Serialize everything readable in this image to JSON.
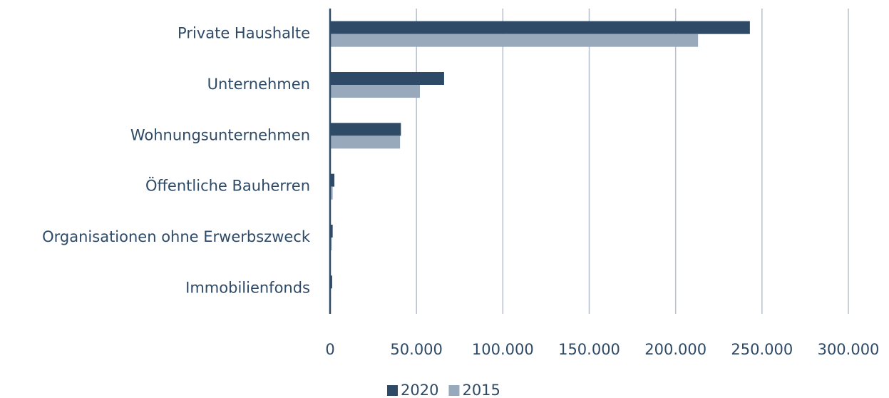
{
  "chart_data": {
    "type": "hbar",
    "categories": [
      "Private Haushalte",
      "Unternehmen",
      "Wohnungsunternehmen",
      "Öffentliche Bauherren",
      "Organisationen ohne Erwerbszweck",
      "Immobilienfonds"
    ],
    "series": [
      {
        "name": "2020",
        "color": "#2e4a66",
        "values": [
          243000,
          66000,
          41000,
          2500,
          1500,
          1200
        ]
      },
      {
        "name": "2015",
        "color": "#97a9bb",
        "values": [
          213000,
          52000,
          40500,
          1500,
          1000,
          500
        ]
      }
    ],
    "xlim": [
      0,
      300000
    ],
    "xticks": [
      0,
      {
        "value": 50000,
        "label": "50.000"
      },
      {
        "value": 100000,
        "label": "100.000"
      },
      {
        "value": 150000,
        "label": "150.000"
      },
      {
        "value": 200000,
        "label": "200.000"
      },
      {
        "value": 250000,
        "label": "250.000"
      },
      {
        "value": 300000,
        "label": "300.000"
      }
    ],
    "grid": true,
    "legend": "bottom"
  }
}
